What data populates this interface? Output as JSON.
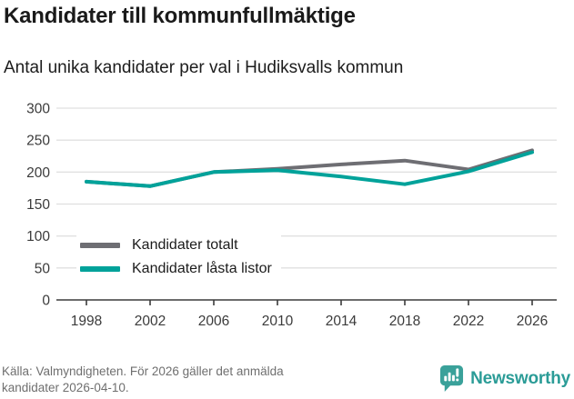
{
  "header": {
    "title": "Kandidater till kommunfullmäktige",
    "subtitle": "Antal unika kandidater per val i Hudiksvalls kommun"
  },
  "chart_data": {
    "type": "line",
    "title": "Kandidater till kommunfullmäktige",
    "subtitle": "Antal unika kandidater per val i Hudiksvalls kommun",
    "categories": [
      "1998",
      "2002",
      "2006",
      "2010",
      "2014",
      "2018",
      "2022",
      "2026"
    ],
    "series": [
      {
        "name": "Kandidater totalt",
        "color": "#6e6e73",
        "values": [
          185,
          178,
          200,
          205,
          212,
          218,
          204,
          234
        ]
      },
      {
        "name": "Kandidater låsta listor",
        "color": "#00a29a",
        "values": [
          185,
          178,
          200,
          203,
          193,
          181,
          201,
          231
        ]
      }
    ],
    "xlabel": "",
    "ylabel": "",
    "ylim": [
      0,
      300
    ],
    "yticks": [
      0,
      50,
      100,
      150,
      200,
      250,
      300
    ],
    "grid": "horizontal",
    "legend_position": "inside-bottom-left"
  },
  "footer": {
    "source_line1": "Källa: Valmyndigheten. För 2026 gäller det anmälda",
    "source_line2": "kandidater 2026-04-10.",
    "brand": "Newsworthy"
  },
  "colors": {
    "accent_teal": "#00a29a",
    "series_gray": "#6e6e73",
    "brand_teal": "#3aa19a",
    "gridline": "#e0e0e0",
    "axis": "#3b3b3b",
    "muted_text": "#6f6f6f"
  }
}
